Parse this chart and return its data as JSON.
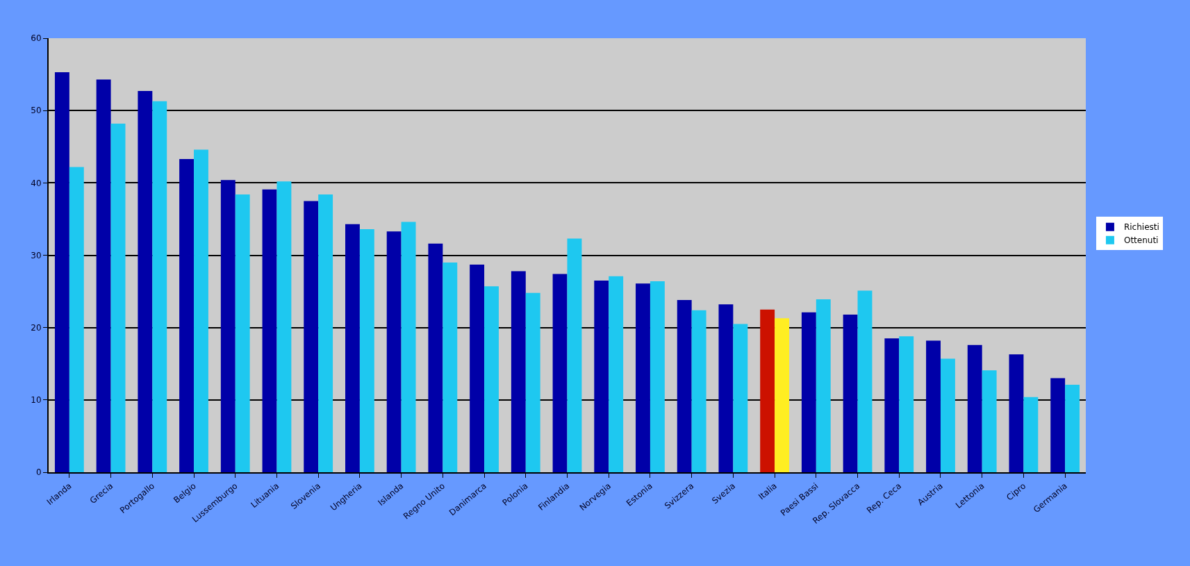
{
  "chart_data": {
    "type": "bar",
    "categories": [
      "Irlanda",
      "Grecia",
      "Portogallo",
      "Belgio",
      "Lussemburgo",
      "Lituania",
      "Slovenia",
      "Ungheria",
      "Islanda",
      "Regno Unito",
      "Danimarca",
      "Polonia",
      "Finlandia",
      "Norvegia",
      "Estonia",
      "Svizzera",
      "Svezia",
      "Italia",
      "Paesi Bassi",
      "Rep. Slovacca",
      "Rep. Ceca",
      "Austria",
      "Lettonia",
      "Cipro",
      "Germania"
    ],
    "series": [
      {
        "name": "Richiesti",
        "color": "#0000a8",
        "colors": [
          null,
          null,
          null,
          null,
          null,
          null,
          null,
          null,
          null,
          null,
          null,
          null,
          null,
          null,
          null,
          null,
          null,
          "#cc1100",
          null,
          null,
          null,
          null,
          null,
          null,
          null
        ],
        "values": [
          55.3,
          54.3,
          52.7,
          43.3,
          40.4,
          39.1,
          37.5,
          34.3,
          33.3,
          31.6,
          28.7,
          27.8,
          27.4,
          26.5,
          26.1,
          23.8,
          23.2,
          22.5,
          22.1,
          21.8,
          18.5,
          18.2,
          17.6,
          16.3,
          13.0
        ]
      },
      {
        "name": "Ottenuti",
        "color": "#1ec8f0",
        "colors": [
          null,
          null,
          null,
          null,
          null,
          null,
          null,
          null,
          null,
          null,
          null,
          null,
          null,
          null,
          null,
          null,
          null,
          "#ffee22",
          null,
          null,
          null,
          null,
          null,
          null,
          null
        ],
        "values": [
          42.2,
          48.2,
          51.3,
          44.6,
          38.4,
          40.2,
          38.4,
          33.6,
          34.6,
          29.0,
          25.7,
          24.8,
          32.3,
          27.1,
          26.4,
          22.4,
          20.5,
          21.3,
          23.9,
          25.1,
          18.8,
          15.7,
          14.1,
          10.4,
          12.1
        ]
      }
    ],
    "ylim": [
      0,
      60
    ],
    "yticks": [
      0,
      10,
      20,
      30,
      40,
      50,
      60
    ],
    "grid": "y",
    "legend": "right"
  }
}
